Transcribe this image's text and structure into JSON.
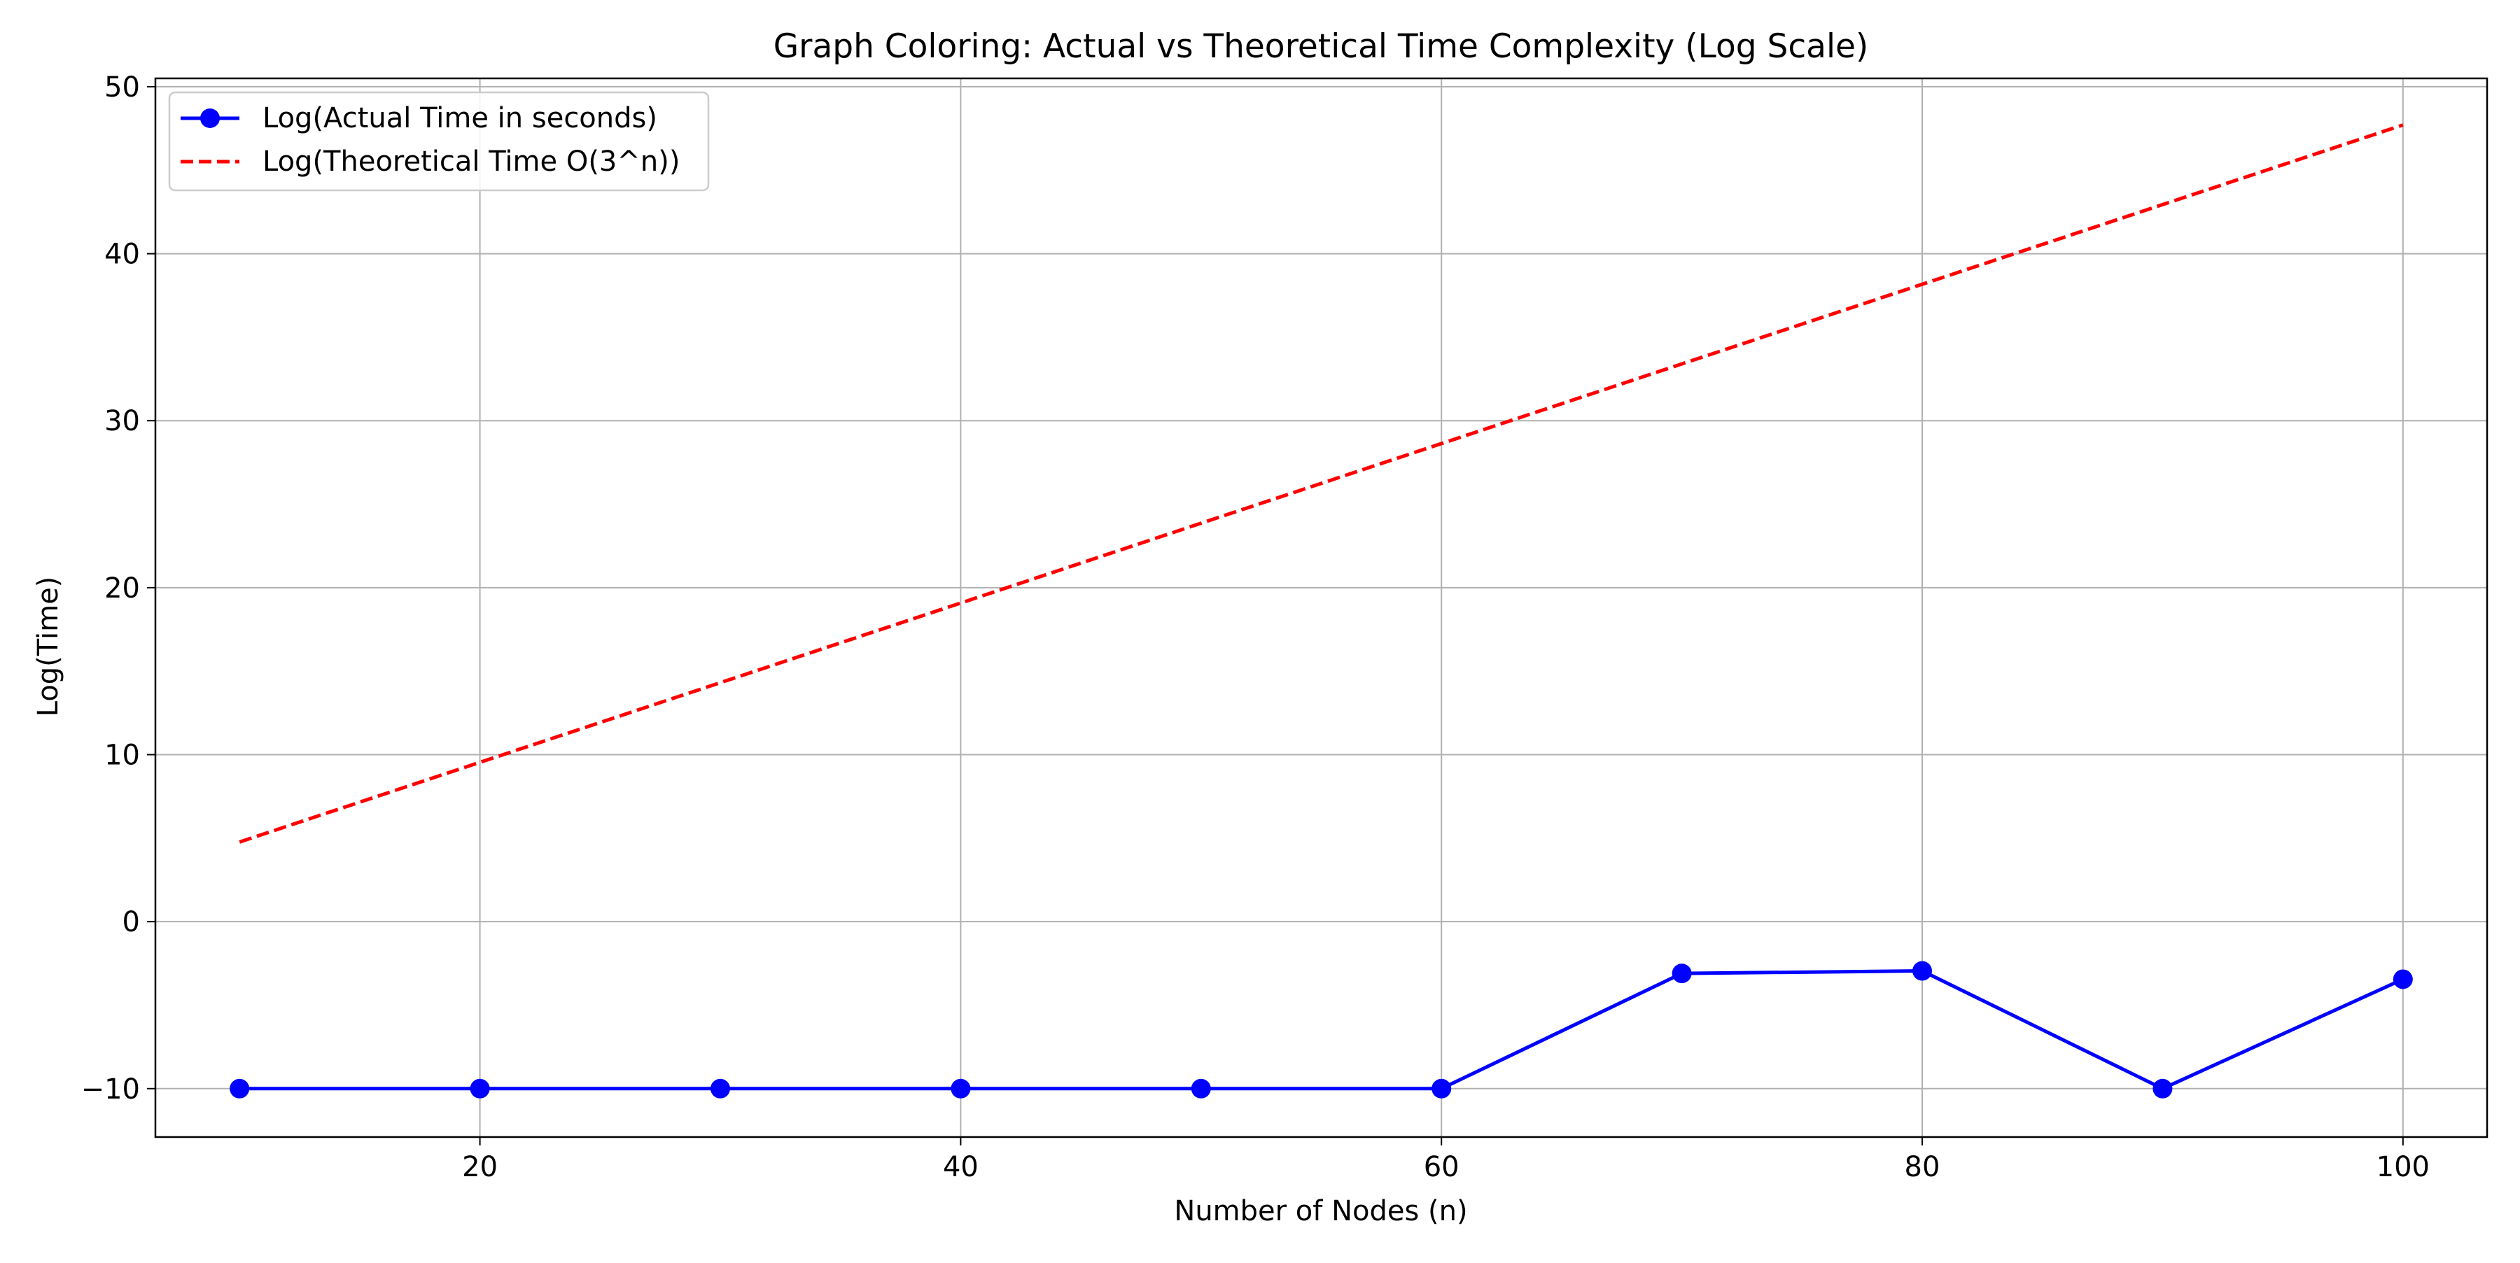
{
  "chart_data": {
    "type": "line",
    "title": "Graph Coloring: Actual vs Theoretical Time Complexity (Log Scale)",
    "xlabel": "Number of Nodes (n)",
    "ylabel": "Log(Time)",
    "xlim": [
      6.5,
      103.5
    ],
    "ylim": [
      -12.9,
      50.5
    ],
    "x_ticks": [
      20,
      40,
      60,
      80,
      100
    ],
    "y_ticks": [
      -10,
      0,
      10,
      20,
      30,
      40,
      50
    ],
    "x_tick_labels": [
      "20",
      "40",
      "60",
      "80",
      "100"
    ],
    "y_tick_labels": [
      "−10",
      "0",
      "10",
      "20",
      "30",
      "40",
      "50"
    ],
    "grid": true,
    "legend_position": "top-left",
    "x": [
      10,
      20,
      30,
      40,
      50,
      60,
      70,
      80,
      90,
      100
    ],
    "series": [
      {
        "name": "Log(Actual Time in seconds)",
        "style": "solid-marker",
        "color": "#0000ff",
        "values": [
          -10,
          -10,
          -10,
          -10,
          -10,
          -10,
          -3.1,
          -2.95,
          -10,
          -3.45
        ]
      },
      {
        "name": "Log(Theoretical Time O(3^n))",
        "style": "dashed",
        "color": "#ff0000",
        "values": [
          4.77,
          9.54,
          14.31,
          19.08,
          23.86,
          28.63,
          33.4,
          38.17,
          42.94,
          47.71
        ]
      }
    ]
  }
}
